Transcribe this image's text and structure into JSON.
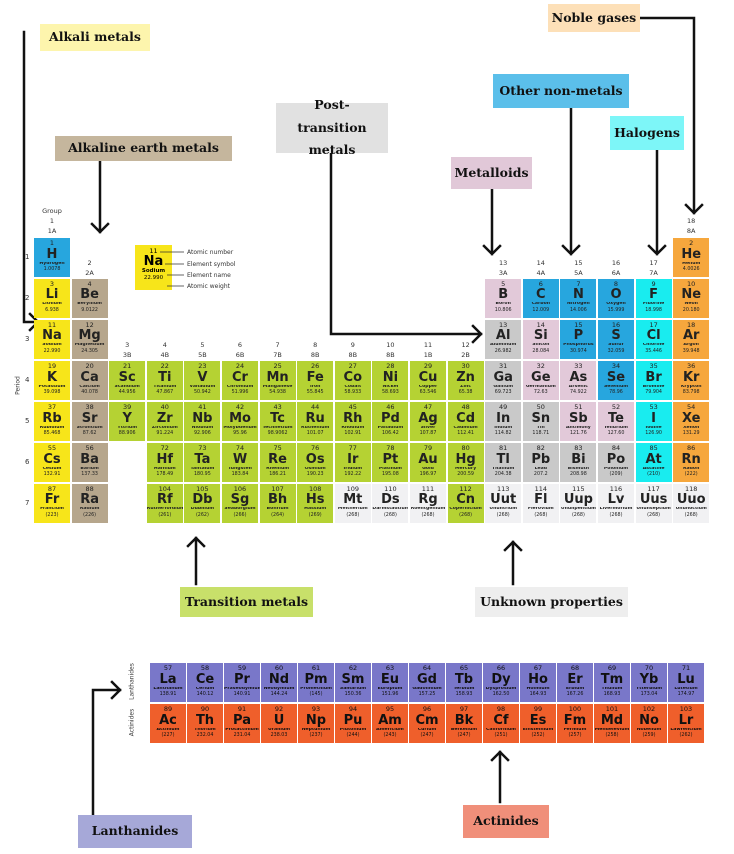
{
  "colors": {
    "alkali": "#f7e51a",
    "alkaline": "#b6a68c",
    "transition": "#b5d233",
    "post": "#c9c9c9",
    "metalloid": "#e2c9d9",
    "nonmetal": "#27a6de",
    "halogen": "#19ecef",
    "noble": "#f6a73d",
    "unknown": "#f1f1f3",
    "lanthanide": "#7977c9",
    "actinide": "#ef5f2b"
  },
  "labels": {
    "alkali": "Alkali metals",
    "alkaline": "Alkaline earth metals",
    "post": "Post-transition metals",
    "metalloid": "Metalloids",
    "nonmetal": "Other non-metals",
    "halogen": "Halogens",
    "noble": "Noble gases",
    "transition": "Transition metals",
    "unknown": "Unknown properties",
    "lanthanide": "Lanthanides",
    "actinide": "Actinides"
  },
  "group_title": "Group",
  "period_title": "Period",
  "groups": [
    [
      "1",
      "1A"
    ],
    [
      "2",
      "2A"
    ],
    [
      "3",
      "3B"
    ],
    [
      "4",
      "4B"
    ],
    [
      "5",
      "5B"
    ],
    [
      "6",
      "6B"
    ],
    [
      "7",
      "7B"
    ],
    [
      "8",
      "8B"
    ],
    [
      "9",
      "8B"
    ],
    [
      "10",
      "8B"
    ],
    [
      "11",
      "1B"
    ],
    [
      "12",
      "2B"
    ],
    [
      "13",
      "3A"
    ],
    [
      "14",
      "4A"
    ],
    [
      "15",
      "5A"
    ],
    [
      "16",
      "6A"
    ],
    [
      "17",
      "7A"
    ],
    [
      "18",
      "8A"
    ]
  ],
  "periods": [
    "1",
    "2",
    "3",
    "4",
    "5",
    "6",
    "7"
  ],
  "series_labels": {
    "lanthanide": "Lanthanides",
    "actinide": "Actinides"
  },
  "legend": {
    "number": "11",
    "symbol": "Na",
    "name": "Sodium",
    "weight": "22.990",
    "atomic_number": "Atomic number",
    "element_symbol": "Element symbol",
    "element_name": "Element name",
    "atomic_weight": "Atomic weight"
  },
  "elements": [
    {
      "n": "1",
      "s": "H",
      "nm": "Hydrogen",
      "w": "1.0078",
      "c": "nonmetal",
      "p": 1,
      "g": 1
    },
    {
      "n": "2",
      "s": "He",
      "nm": "Helium",
      "w": "4.0026",
      "c": "noble",
      "p": 1,
      "g": 18
    },
    {
      "n": "3",
      "s": "Li",
      "nm": "Lithium",
      "w": "6.938",
      "c": "alkali",
      "p": 2,
      "g": 1
    },
    {
      "n": "4",
      "s": "Be",
      "nm": "Beryllium",
      "w": "9.0122",
      "c": "alkaline",
      "p": 2,
      "g": 2
    },
    {
      "n": "5",
      "s": "B",
      "nm": "Boron",
      "w": "10.806",
      "c": "metalloid",
      "p": 2,
      "g": 13
    },
    {
      "n": "6",
      "s": "C",
      "nm": "Carbon",
      "w": "12.009",
      "c": "nonmetal",
      "p": 2,
      "g": 14
    },
    {
      "n": "7",
      "s": "N",
      "nm": "Nitrogen",
      "w": "14.006",
      "c": "nonmetal",
      "p": 2,
      "g": 15
    },
    {
      "n": "8",
      "s": "O",
      "nm": "Oxygen",
      "w": "15.999",
      "c": "nonmetal",
      "p": 2,
      "g": 16
    },
    {
      "n": "9",
      "s": "F",
      "nm": "Fluorine",
      "w": "18.998",
      "c": "halogen",
      "p": 2,
      "g": 17
    },
    {
      "n": "10",
      "s": "Ne",
      "nm": "Neon",
      "w": "20.180",
      "c": "noble",
      "p": 2,
      "g": 18
    },
    {
      "n": "11",
      "s": "Na",
      "nm": "Sodium",
      "w": "22.990",
      "c": "alkali",
      "p": 3,
      "g": 1
    },
    {
      "n": "12",
      "s": "Mg",
      "nm": "Magnesium",
      "w": "24.305",
      "c": "alkaline",
      "p": 3,
      "g": 2
    },
    {
      "n": "13",
      "s": "Al",
      "nm": "Aluminum",
      "w": "26.982",
      "c": "post",
      "p": 3,
      "g": 13
    },
    {
      "n": "14",
      "s": "Si",
      "nm": "Silicon",
      "w": "28.084",
      "c": "metalloid",
      "p": 3,
      "g": 14
    },
    {
      "n": "15",
      "s": "P",
      "nm": "Phosphorus",
      "w": "30.974",
      "c": "nonmetal",
      "p": 3,
      "g": 15
    },
    {
      "n": "16",
      "s": "S",
      "nm": "Sulfur",
      "w": "32.059",
      "c": "nonmetal",
      "p": 3,
      "g": 16
    },
    {
      "n": "17",
      "s": "Cl",
      "nm": "Chlorine",
      "w": "35.446",
      "c": "halogen",
      "p": 3,
      "g": 17
    },
    {
      "n": "18",
      "s": "Ar",
      "nm": "Argon",
      "w": "39.948",
      "c": "noble",
      "p": 3,
      "g": 18
    },
    {
      "n": "19",
      "s": "K",
      "nm": "Potassium",
      "w": "39.098",
      "c": "alkali",
      "p": 4,
      "g": 1
    },
    {
      "n": "20",
      "s": "Ca",
      "nm": "Calcium",
      "w": "40.078",
      "c": "alkaline",
      "p": 4,
      "g": 2
    },
    {
      "n": "21",
      "s": "Sc",
      "nm": "Scandium",
      "w": "44.956",
      "c": "transition",
      "p": 4,
      "g": 3
    },
    {
      "n": "22",
      "s": "Ti",
      "nm": "Titanium",
      "w": "47.867",
      "c": "transition",
      "p": 4,
      "g": 4
    },
    {
      "n": "23",
      "s": "V",
      "nm": "Vanadium",
      "w": "50.942",
      "c": "transition",
      "p": 4,
      "g": 5
    },
    {
      "n": "24",
      "s": "Cr",
      "nm": "Chromium",
      "w": "51.996",
      "c": "transition",
      "p": 4,
      "g": 6
    },
    {
      "n": "25",
      "s": "Mn",
      "nm": "Manganese",
      "w": "54.938",
      "c": "transition",
      "p": 4,
      "g": 7
    },
    {
      "n": "26",
      "s": "Fe",
      "nm": "Iron",
      "w": "55.845",
      "c": "transition",
      "p": 4,
      "g": 8
    },
    {
      "n": "27",
      "s": "Co",
      "nm": "Cobalt",
      "w": "58.933",
      "c": "transition",
      "p": 4,
      "g": 9
    },
    {
      "n": "28",
      "s": "Ni",
      "nm": "Nickel",
      "w": "58.693",
      "c": "transition",
      "p": 4,
      "g": 10
    },
    {
      "n": "29",
      "s": "Cu",
      "nm": "Copper",
      "w": "63.546",
      "c": "transition",
      "p": 4,
      "g": 11
    },
    {
      "n": "30",
      "s": "Zn",
      "nm": "Zinc",
      "w": "65.38",
      "c": "transition",
      "p": 4,
      "g": 12
    },
    {
      "n": "31",
      "s": "Ga",
      "nm": "Gallium",
      "w": "69.723",
      "c": "post",
      "p": 4,
      "g": 13
    },
    {
      "n": "32",
      "s": "Ge",
      "nm": "Germanium",
      "w": "72.63",
      "c": "metalloid",
      "p": 4,
      "g": 14
    },
    {
      "n": "33",
      "s": "As",
      "nm": "Arsenic",
      "w": "74.922",
      "c": "metalloid",
      "p": 4,
      "g": 15
    },
    {
      "n": "34",
      "s": "Se",
      "nm": "Selenium",
      "w": "78.96",
      "c": "nonmetal",
      "p": 4,
      "g": 16
    },
    {
      "n": "35",
      "s": "Br",
      "nm": "Bromine",
      "w": "79.904",
      "c": "halogen",
      "p": 4,
      "g": 17
    },
    {
      "n": "36",
      "s": "Kr",
      "nm": "Krypton",
      "w": "83.798",
      "c": "noble",
      "p": 4,
      "g": 18
    },
    {
      "n": "37",
      "s": "Rb",
      "nm": "Rubidium",
      "w": "85.468",
      "c": "alkali",
      "p": 5,
      "g": 1
    },
    {
      "n": "38",
      "s": "Sr",
      "nm": "Strontium",
      "w": "87.62",
      "c": "alkaline",
      "p": 5,
      "g": 2
    },
    {
      "n": "39",
      "s": "Y",
      "nm": "Yttrium",
      "w": "88.906",
      "c": "transition",
      "p": 5,
      "g": 3
    },
    {
      "n": "40",
      "s": "Zr",
      "nm": "Zirconium",
      "w": "91.224",
      "c": "transition",
      "p": 5,
      "g": 4
    },
    {
      "n": "41",
      "s": "Nb",
      "nm": "Niobium",
      "w": "92.906",
      "c": "transition",
      "p": 5,
      "g": 5
    },
    {
      "n": "42",
      "s": "Mo",
      "nm": "Molybdenum",
      "w": "95.96",
      "c": "transition",
      "p": 5,
      "g": 6
    },
    {
      "n": "43",
      "s": "Tc",
      "nm": "Technetium",
      "w": "98.9062",
      "c": "transition",
      "p": 5,
      "g": 7
    },
    {
      "n": "44",
      "s": "Ru",
      "nm": "Ruthenium",
      "w": "101.07",
      "c": "transition",
      "p": 5,
      "g": 8
    },
    {
      "n": "45",
      "s": "Rh",
      "nm": "Rhodium",
      "w": "102.91",
      "c": "transition",
      "p": 5,
      "g": 9
    },
    {
      "n": "46",
      "s": "Pd",
      "nm": "Palladium",
      "w": "106.42",
      "c": "transition",
      "p": 5,
      "g": 10
    },
    {
      "n": "47",
      "s": "Ag",
      "nm": "Silver",
      "w": "107.87",
      "c": "transition",
      "p": 5,
      "g": 11
    },
    {
      "n": "48",
      "s": "Cd",
      "nm": "Cadmium",
      "w": "112.41",
      "c": "transition",
      "p": 5,
      "g": 12
    },
    {
      "n": "49",
      "s": "In",
      "nm": "Indium",
      "w": "114.82",
      "c": "post",
      "p": 5,
      "g": 13
    },
    {
      "n": "50",
      "s": "Sn",
      "nm": "Tin",
      "w": "118.71",
      "c": "post",
      "p": 5,
      "g": 14
    },
    {
      "n": "51",
      "s": "Sb",
      "nm": "Antimony",
      "w": "121.76",
      "c": "metalloid",
      "p": 5,
      "g": 15
    },
    {
      "n": "52",
      "s": "Te",
      "nm": "Tellurium",
      "w": "127.60",
      "c": "metalloid",
      "p": 5,
      "g": 16
    },
    {
      "n": "53",
      "s": "I",
      "nm": "Iodine",
      "w": "126.90",
      "c": "halogen",
      "p": 5,
      "g": 17
    },
    {
      "n": "54",
      "s": "Xe",
      "nm": "Xenon",
      "w": "131.29",
      "c": "noble",
      "p": 5,
      "g": 18
    },
    {
      "n": "55",
      "s": "Cs",
      "nm": "Cesium",
      "w": "132.91",
      "c": "alkali",
      "p": 6,
      "g": 1
    },
    {
      "n": "56",
      "s": "Ba",
      "nm": "Barium",
      "w": "137.33",
      "c": "alkaline",
      "p": 6,
      "g": 2
    },
    {
      "n": "72",
      "s": "Hf",
      "nm": "Hafnium",
      "w": "178.49",
      "c": "transition",
      "p": 6,
      "g": 4
    },
    {
      "n": "73",
      "s": "Ta",
      "nm": "Tantalum",
      "w": "180.95",
      "c": "transition",
      "p": 6,
      "g": 5
    },
    {
      "n": "74",
      "s": "W",
      "nm": "Tungsten",
      "w": "183.84",
      "c": "transition",
      "p": 6,
      "g": 6
    },
    {
      "n": "75",
      "s": "Re",
      "nm": "Rhenium",
      "w": "186.21",
      "c": "transition",
      "p": 6,
      "g": 7
    },
    {
      "n": "76",
      "s": "Os",
      "nm": "Osmium",
      "w": "190.23",
      "c": "transition",
      "p": 6,
      "g": 8
    },
    {
      "n": "77",
      "s": "Ir",
      "nm": "Iridium",
      "w": "192.22",
      "c": "transition",
      "p": 6,
      "g": 9
    },
    {
      "n": "78",
      "s": "Pt",
      "nm": "Platinum",
      "w": "195.08",
      "c": "transition",
      "p": 6,
      "g": 10
    },
    {
      "n": "79",
      "s": "Au",
      "nm": "Gold",
      "w": "196.97",
      "c": "transition",
      "p": 6,
      "g": 11
    },
    {
      "n": "80",
      "s": "Hg",
      "nm": "Mercury",
      "w": "200.59",
      "c": "transition",
      "p": 6,
      "g": 12
    },
    {
      "n": "81",
      "s": "Tl",
      "nm": "Thallium",
      "w": "204.38",
      "c": "post",
      "p": 6,
      "g": 13
    },
    {
      "n": "82",
      "s": "Pb",
      "nm": "Lead",
      "w": "207.2",
      "c": "post",
      "p": 6,
      "g": 14
    },
    {
      "n": "83",
      "s": "Bi",
      "nm": "Bismuth",
      "w": "208.98",
      "c": "post",
      "p": 6,
      "g": 15
    },
    {
      "n": "84",
      "s": "Po",
      "nm": "Polonium",
      "w": "(209)",
      "c": "post",
      "p": 6,
      "g": 16
    },
    {
      "n": "85",
      "s": "At",
      "nm": "Astatine",
      "w": "(210)",
      "c": "halogen",
      "p": 6,
      "g": 17
    },
    {
      "n": "86",
      "s": "Rn",
      "nm": "Radon",
      "w": "(222)",
      "c": "noble",
      "p": 6,
      "g": 18
    },
    {
      "n": "87",
      "s": "Fr",
      "nm": "Francium",
      "w": "(223)",
      "c": "alkali",
      "p": 7,
      "g": 1
    },
    {
      "n": "88",
      "s": "Ra",
      "nm": "Radium",
      "w": "(226)",
      "c": "alkaline",
      "p": 7,
      "g": 2
    },
    {
      "n": "104",
      "s": "Rf",
      "nm": "Rutherfordium",
      "w": "(261)",
      "c": "transition",
      "p": 7,
      "g": 4
    },
    {
      "n": "105",
      "s": "Db",
      "nm": "Dubnium",
      "w": "(262)",
      "c": "transition",
      "p": 7,
      "g": 5
    },
    {
      "n": "106",
      "s": "Sg",
      "nm": "Seaborgium",
      "w": "(266)",
      "c": "transition",
      "p": 7,
      "g": 6
    },
    {
      "n": "107",
      "s": "Bh",
      "nm": "Bohrium",
      "w": "(264)",
      "c": "transition",
      "p": 7,
      "g": 7
    },
    {
      "n": "108",
      "s": "Hs",
      "nm": "Hassium",
      "w": "(269)",
      "c": "transition",
      "p": 7,
      "g": 8
    },
    {
      "n": "109",
      "s": "Mt",
      "nm": "Meitnerium",
      "w": "(268)",
      "c": "unknown",
      "p": 7,
      "g": 9
    },
    {
      "n": "110",
      "s": "Ds",
      "nm": "Darmstadtium",
      "w": "(268)",
      "c": "unknown",
      "p": 7,
      "g": 10
    },
    {
      "n": "111",
      "s": "Rg",
      "nm": "Roentgenium",
      "w": "(268)",
      "c": "unknown",
      "p": 7,
      "g": 11
    },
    {
      "n": "112",
      "s": "Cn",
      "nm": "Copernicium",
      "w": "(268)",
      "c": "transition",
      "p": 7,
      "g": 12
    },
    {
      "n": "113",
      "s": "Uut",
      "nm": "Ununtrium",
      "w": "(268)",
      "c": "unknown",
      "p": 7,
      "g": 13
    },
    {
      "n": "114",
      "s": "Fl",
      "nm": "Flerovium",
      "w": "(268)",
      "c": "unknown",
      "p": 7,
      "g": 14
    },
    {
      "n": "115",
      "s": "Uup",
      "nm": "Ununpentium",
      "w": "(268)",
      "c": "unknown",
      "p": 7,
      "g": 15
    },
    {
      "n": "116",
      "s": "Lv",
      "nm": "Livermorium",
      "w": "(268)",
      "c": "unknown",
      "p": 7,
      "g": 16
    },
    {
      "n": "117",
      "s": "Uus",
      "nm": "Ununseptium",
      "w": "(268)",
      "c": "unknown",
      "p": 7,
      "g": 17
    },
    {
      "n": "118",
      "s": "Uuo",
      "nm": "Ununoctium",
      "w": "(268)",
      "c": "unknown",
      "p": 7,
      "g": 18
    }
  ],
  "fblock": [
    {
      "n": "57",
      "s": "La",
      "nm": "Lanthanum",
      "w": "138.91",
      "c": "lanthanide"
    },
    {
      "n": "58",
      "s": "Ce",
      "nm": "Cerium",
      "w": "140.12",
      "c": "lanthanide"
    },
    {
      "n": "59",
      "s": "Pr",
      "nm": "Praseodymium",
      "w": "140.91",
      "c": "lanthanide"
    },
    {
      "n": "60",
      "s": "Nd",
      "nm": "Neodymium",
      "w": "144.24",
      "c": "lanthanide"
    },
    {
      "n": "61",
      "s": "Pm",
      "nm": "Promethium",
      "w": "(145)",
      "c": "lanthanide"
    },
    {
      "n": "62",
      "s": "Sm",
      "nm": "Samarium",
      "w": "150.36",
      "c": "lanthanide"
    },
    {
      "n": "63",
      "s": "Eu",
      "nm": "Europium",
      "w": "151.96",
      "c": "lanthanide"
    },
    {
      "n": "64",
      "s": "Gd",
      "nm": "Gadolinium",
      "w": "157.25",
      "c": "lanthanide"
    },
    {
      "n": "65",
      "s": "Tb",
      "nm": "Terbium",
      "w": "158.93",
      "c": "lanthanide"
    },
    {
      "n": "66",
      "s": "Dy",
      "nm": "Dysprosium",
      "w": "162.50",
      "c": "lanthanide"
    },
    {
      "n": "67",
      "s": "Ho",
      "nm": "Holmium",
      "w": "164.93",
      "c": "lanthanide"
    },
    {
      "n": "68",
      "s": "Er",
      "nm": "Erbium",
      "w": "167.26",
      "c": "lanthanide"
    },
    {
      "n": "69",
      "s": "Tm",
      "nm": "Thulium",
      "w": "168.93",
      "c": "lanthanide"
    },
    {
      "n": "70",
      "s": "Yb",
      "nm": "Ytterbium",
      "w": "173.04",
      "c": "lanthanide"
    },
    {
      "n": "71",
      "s": "Lu",
      "nm": "Lutetium",
      "w": "174.97",
      "c": "lanthanide"
    },
    {
      "n": "89",
      "s": "Ac",
      "nm": "Actinium",
      "w": "(227)",
      "c": "actinide"
    },
    {
      "n": "90",
      "s": "Th",
      "nm": "Thorium",
      "w": "232.04",
      "c": "actinide"
    },
    {
      "n": "91",
      "s": "Pa",
      "nm": "Protactinium",
      "w": "231.04",
      "c": "actinide"
    },
    {
      "n": "92",
      "s": "U",
      "nm": "Uranium",
      "w": "238.03",
      "c": "actinide"
    },
    {
      "n": "93",
      "s": "Np",
      "nm": "Neptunium",
      "w": "(237)",
      "c": "actinide"
    },
    {
      "n": "94",
      "s": "Pu",
      "nm": "Plutonium",
      "w": "(244)",
      "c": "actinide"
    },
    {
      "n": "95",
      "s": "Am",
      "nm": "Americium",
      "w": "(243)",
      "c": "actinide"
    },
    {
      "n": "96",
      "s": "Cm",
      "nm": "Curium",
      "w": "(247)",
      "c": "actinide"
    },
    {
      "n": "97",
      "s": "Bk",
      "nm": "Berkelium",
      "w": "(247)",
      "c": "actinide"
    },
    {
      "n": "98",
      "s": "Cf",
      "nm": "Californium",
      "w": "(251)",
      "c": "actinide"
    },
    {
      "n": "99",
      "s": "Es",
      "nm": "Einsteinium",
      "w": "(252)",
      "c": "actinide"
    },
    {
      "n": "100",
      "s": "Fm",
      "nm": "Fermium",
      "w": "(257)",
      "c": "actinide"
    },
    {
      "n": "101",
      "s": "Md",
      "nm": "Mendelevium",
      "w": "(258)",
      "c": "actinide"
    },
    {
      "n": "102",
      "s": "No",
      "nm": "Nobelium",
      "w": "(259)",
      "c": "actinide"
    },
    {
      "n": "103",
      "s": "Lr",
      "nm": "Lawrencium",
      "w": "(262)",
      "c": "actinide"
    }
  ]
}
